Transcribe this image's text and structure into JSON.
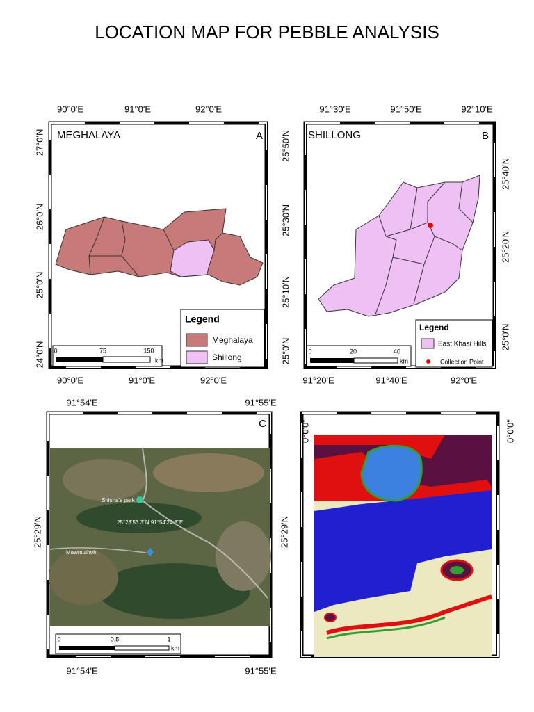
{
  "title": "LOCATION MAP FOR PEBBLE ANALYSIS",
  "map_a": {
    "label": "A",
    "name": "MEGHALAYA",
    "top_ticks": [
      "90°0'E",
      "91°0'E",
      "92°0'E"
    ],
    "bottom_ticks": [
      "90°0'E",
      "91°0'E",
      "92°0'E"
    ],
    "left_ticks": [
      "27°0'N",
      "26°0'N",
      "25°0'N",
      "24°0'N"
    ],
    "legend": {
      "title": "Legend",
      "items": [
        "Meghalaya",
        "Shillong"
      ]
    },
    "scale": {
      "ticks": [
        "0",
        "75",
        "150"
      ],
      "unit": "km"
    }
  },
  "map_b": {
    "label": "B",
    "name": "SHILLONG",
    "top_ticks": [
      "91°30'E",
      "91°50'E",
      "92°10'E"
    ],
    "bottom_ticks": [
      "91°20'E",
      "91°40'E",
      "92°0'E"
    ],
    "left_ticks": [
      "25°50'N",
      "25°30'N",
      "25°10'N",
      "25°0'N"
    ],
    "right_ticks": [
      "25°40'N",
      "25°20'N",
      "25°0'N"
    ],
    "legend": {
      "title": "Legend",
      "items": [
        "East Khasi Hills",
        "Collection Point"
      ]
    },
    "scale": {
      "ticks": [
        "0",
        "20",
        "40"
      ],
      "unit": "km"
    }
  },
  "map_c": {
    "label": "C",
    "top_ticks": [
      "91°54'E",
      "91°55'E"
    ],
    "bottom_ticks": [
      "91°54'E",
      "91°55'E"
    ],
    "left_ticks": [
      "25°29'N"
    ],
    "right_ticks": [
      "25°29'N"
    ],
    "place_labels": [
      "Shisha's park",
      "25°28'53.3\"N 91°54'24.8\"E",
      "Mawmuthoh"
    ],
    "scale": {
      "ticks": [
        "0",
        "0.5",
        "1"
      ],
      "unit": "km"
    }
  },
  "map_d": {
    "left_ticks": [
      "0°0'0\""
    ],
    "right_ticks": [
      "0°0'0\""
    ]
  }
}
